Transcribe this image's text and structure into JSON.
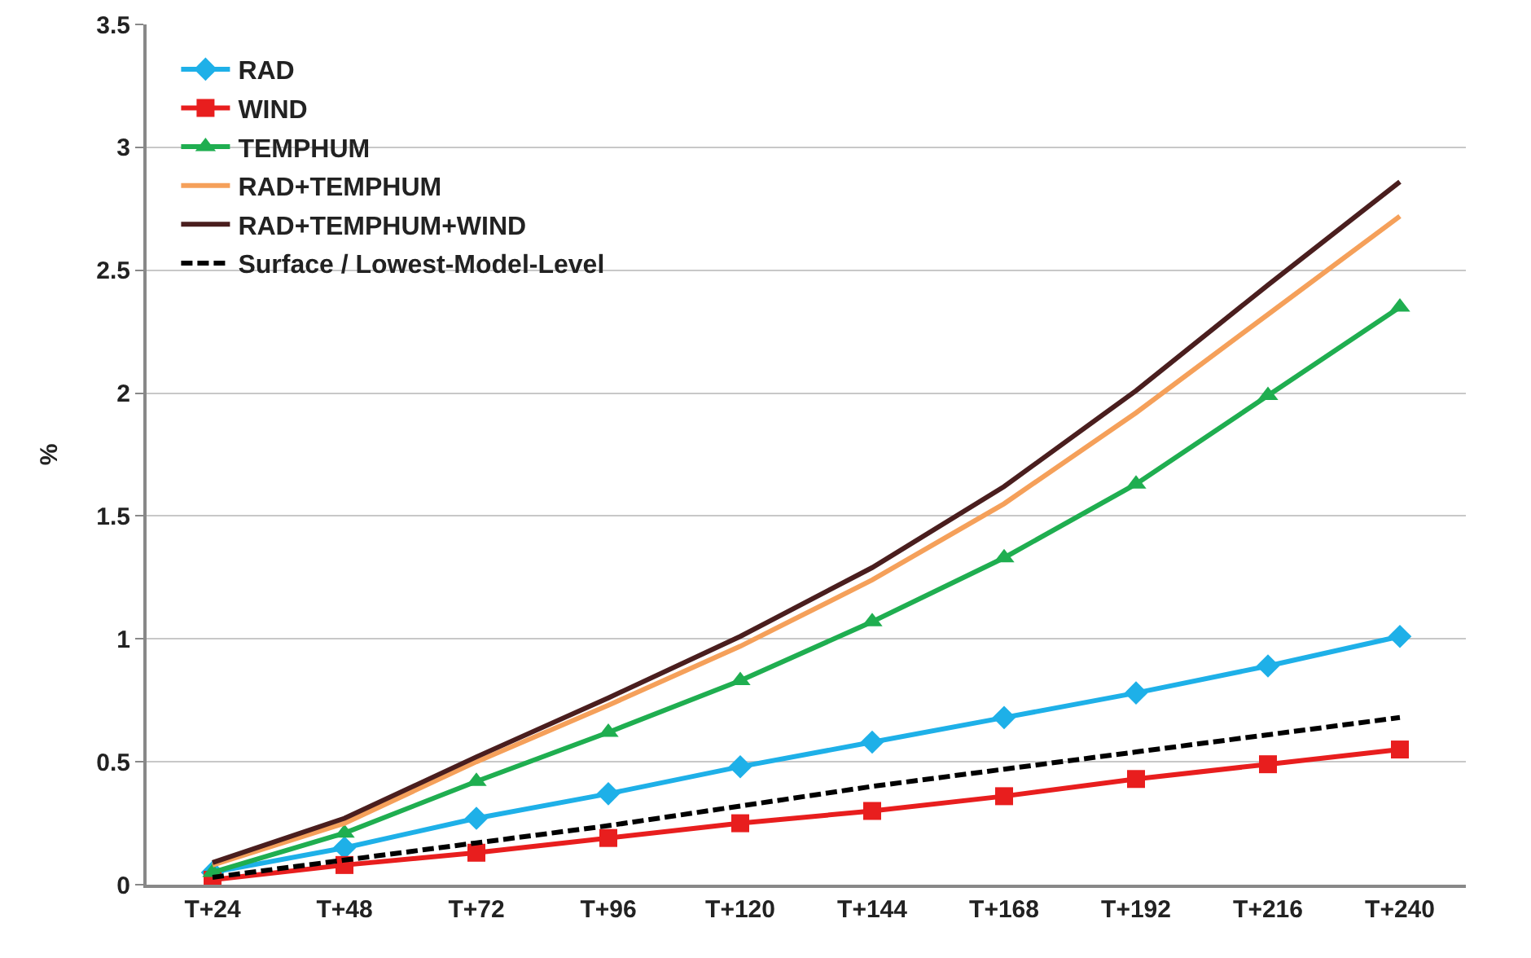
{
  "chart_data": {
    "type": "line",
    "ylabel": "%",
    "categories": [
      "T+24",
      "T+48",
      "T+72",
      "T+96",
      "T+120",
      "T+144",
      "T+168",
      "T+192",
      "T+216",
      "T+240"
    ],
    "ylim": [
      0,
      3.5
    ],
    "yticks": [
      0,
      0.5,
      1,
      1.5,
      2,
      2.5,
      3,
      3.5
    ],
    "grid": "y",
    "legend": "top left",
    "series": [
      {
        "name": "RAD",
        "color": "#1eb0e8",
        "marker": "diamond",
        "line_style": "solid",
        "values": [
          0.05,
          0.15,
          0.27,
          0.37,
          0.48,
          0.58,
          0.68,
          0.78,
          0.89,
          1.01
        ]
      },
      {
        "name": "WIND",
        "color": "#e81e1e",
        "marker": "square",
        "line_style": "solid",
        "values": [
          0.02,
          0.08,
          0.13,
          0.19,
          0.25,
          0.3,
          0.36,
          0.43,
          0.49,
          0.55
        ]
      },
      {
        "name": "TEMPHUM",
        "color": "#1fae50",
        "marker": "triangle",
        "line_style": "solid",
        "values": [
          0.05,
          0.21,
          0.42,
          0.62,
          0.83,
          1.07,
          1.33,
          1.63,
          1.99,
          2.35
        ]
      },
      {
        "name": "RAD+TEMPHUM",
        "color": "#f5a05a",
        "marker": "none",
        "line_style": "solid",
        "values": [
          0.08,
          0.25,
          0.5,
          0.73,
          0.97,
          1.24,
          1.55,
          1.92,
          2.32,
          2.72
        ]
      },
      {
        "name": "RAD+TEMPHUM+WIND",
        "color": "#4a1e1e",
        "marker": "none",
        "line_style": "solid",
        "values": [
          0.09,
          0.27,
          0.52,
          0.76,
          1.01,
          1.29,
          1.62,
          2.01,
          2.44,
          2.86
        ]
      },
      {
        "name": "Surface / Lowest-Model-Level",
        "color": "#000000",
        "marker": "none",
        "line_style": "dashed",
        "values": [
          0.03,
          0.1,
          0.17,
          0.24,
          0.32,
          0.4,
          0.47,
          0.54,
          0.61,
          0.68
        ]
      }
    ]
  }
}
